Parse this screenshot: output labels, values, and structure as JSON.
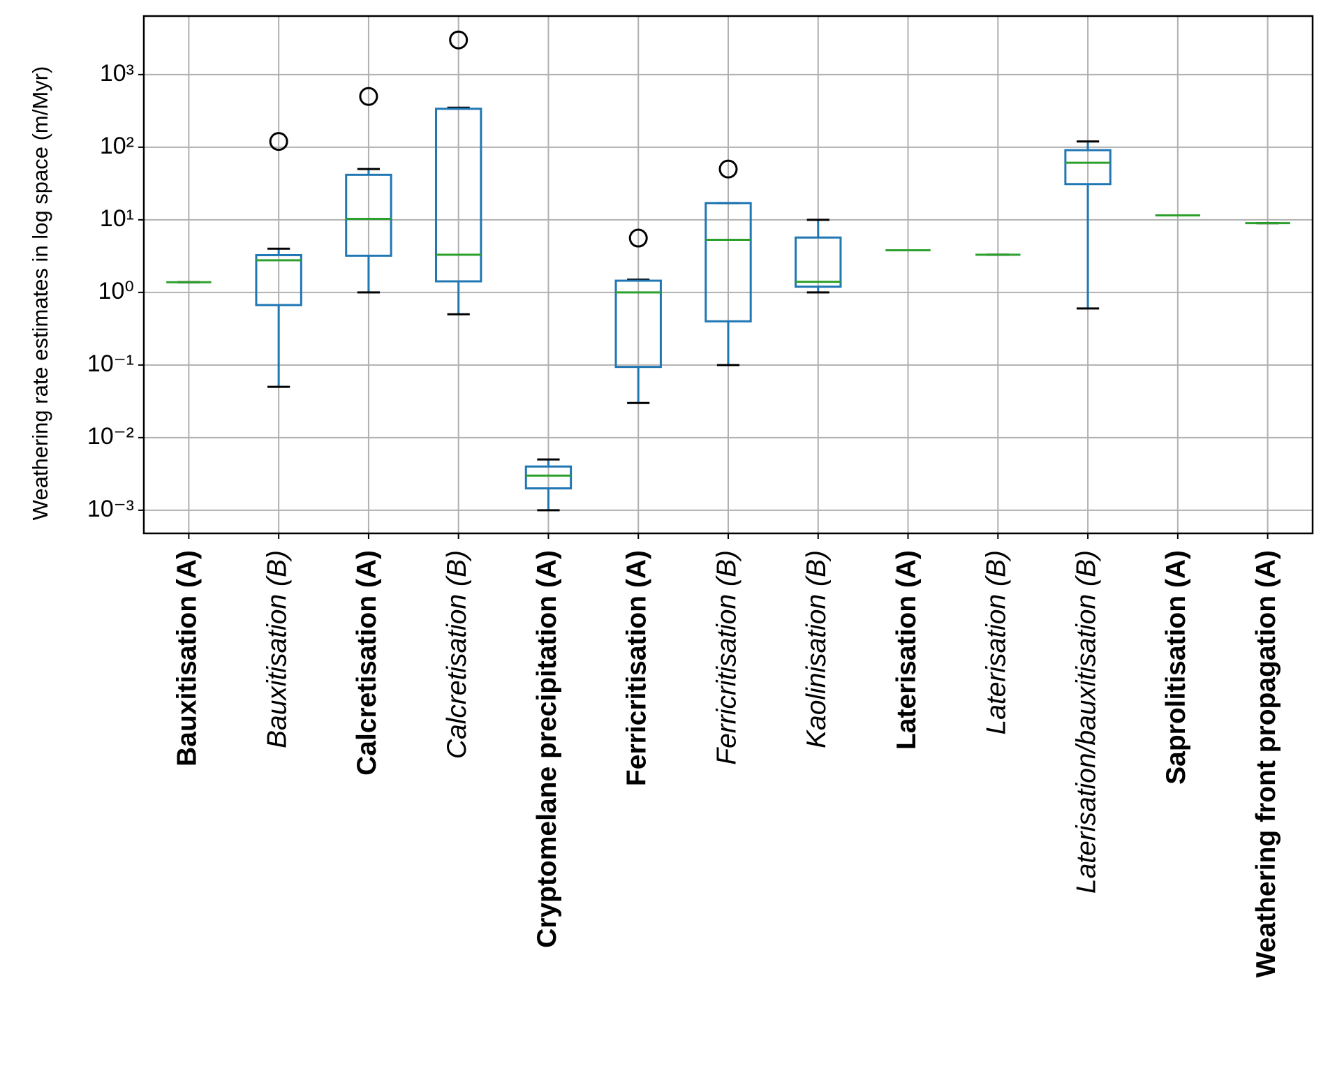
{
  "chart_data": {
    "type": "box",
    "y_label": "Weathering rate estimates in log space (m/Myr)",
    "categories": [
      "Bauxitisation (A)",
      "Bauxitisation (B)",
      "Calcretisation (A)",
      "Calcretisation (B)",
      "Cryptomelane precipitation (A)",
      "Ferricritisation (A)",
      "Ferricritisation (B)",
      "Kaolinisation (B)",
      "Laterisation (A)",
      "Laterisation (B)",
      "Laterisation/bauxitisation (B)",
      "Saprolitisation (A)",
      "Weathering front propagation (A)"
    ],
    "label_styles": [
      "bold",
      "italic",
      "bold",
      "italic",
      "bold",
      "bold",
      "italic",
      "italic",
      "bold",
      "italic",
      "italic",
      "bold",
      "bold"
    ],
    "boxes": [
      {
        "whislo": 1.38,
        "q1": 1.38,
        "med": 1.38,
        "q3": 1.38,
        "whishi": 1.38,
        "fliers": []
      },
      {
        "whislo": 0.05,
        "q1": 0.67,
        "med": 2.77,
        "q3": 3.26,
        "whishi": 4.0,
        "fliers": [
          120
        ]
      },
      {
        "whislo": 1.0,
        "q1": 3.2,
        "med": 10.3,
        "q3": 41.7,
        "whishi": 50,
        "fliers": [
          500
        ]
      },
      {
        "whislo": 0.5,
        "q1": 1.42,
        "med": 3.3,
        "q3": 338,
        "whishi": 350,
        "fliers": [
          3000
        ]
      },
      {
        "whislo": 0.001,
        "q1": 0.002,
        "med": 0.003,
        "q3": 0.004,
        "whishi": 0.005,
        "fliers": []
      },
      {
        "whislo": 0.03,
        "q1": 0.094,
        "med": 1.0,
        "q3": 1.45,
        "whishi": 1.5,
        "fliers": [
          5.6
        ]
      },
      {
        "whislo": 0.1,
        "q1": 0.4,
        "med": 5.3,
        "q3": 17,
        "whishi": 17,
        "fliers": [
          50
        ]
      },
      {
        "whislo": 1.0,
        "q1": 1.2,
        "med": 1.4,
        "q3": 5.7,
        "whishi": 10,
        "fliers": []
      },
      {
        "whislo": 3.8,
        "q1": 3.8,
        "med": 3.8,
        "q3": 3.8,
        "whishi": 3.8,
        "fliers": []
      },
      {
        "whislo": 3.3,
        "q1": 3.3,
        "med": 3.3,
        "q3": 3.3,
        "whishi": 3.3,
        "fliers": []
      },
      {
        "whislo": 0.6,
        "q1": 31,
        "med": 61,
        "q3": 91,
        "whishi": 120,
        "fliers": []
      },
      {
        "whislo": 11.5,
        "q1": 11.5,
        "med": 11.5,
        "q3": 11.5,
        "whishi": 11.5,
        "fliers": []
      },
      {
        "whislo": 9.0,
        "q1": 9.0,
        "med": 9.0,
        "q3": 9.0,
        "whishi": 9.0,
        "fliers": []
      }
    ],
    "box_color": "#1f77b4",
    "median_color": "#2ca02c",
    "cap_color": "#000000",
    "flier_color": "#000000",
    "ylog": true,
    "ylim": [
      0.00048,
      6400
    ],
    "yticks": [
      {
        "value": 0.001,
        "label": "10⁻³"
      },
      {
        "value": 0.01,
        "label": "10⁻²"
      },
      {
        "value": 0.1,
        "label": "10⁻¹"
      },
      {
        "value": 1,
        "label": "10⁰"
      },
      {
        "value": 10,
        "label": "10¹"
      },
      {
        "value": 100,
        "label": "10²"
      },
      {
        "value": 1000,
        "label": "10³"
      }
    ],
    "grid": true
  }
}
